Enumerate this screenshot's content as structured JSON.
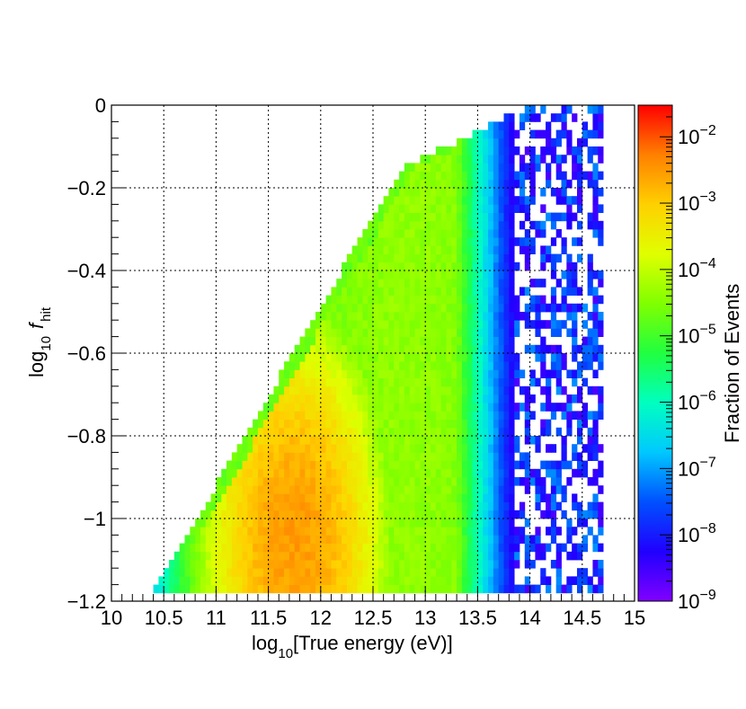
{
  "chart_data": {
    "type": "heatmap",
    "title": "",
    "xlabel": {
      "prefix": "log",
      "sub": "10",
      "text": "[True energy (eV)]"
    },
    "ylabel": {
      "prefix": "log",
      "sub": "10",
      "var": "f",
      "var_sub": "hit"
    },
    "zlabel": "Fraction of Events",
    "xlim": [
      10,
      15
    ],
    "ylim": [
      -1.2,
      0
    ],
    "zlim": [
      1e-09,
      0.03
    ],
    "z_scale": "log",
    "grid": true,
    "colorbar": "right",
    "x_ticks": [
      "10",
      "10.5",
      "11",
      "11.5",
      "12",
      "12.5",
      "13",
      "13.5",
      "14",
      "14.5",
      "15"
    ],
    "y_ticks": [
      "0",
      "−0.2",
      "−0.4",
      "−0.6",
      "−0.8",
      "−1",
      "−1.2"
    ],
    "y_tick_values": [
      0,
      -0.2,
      -0.4,
      -0.6,
      -0.8,
      -1,
      -1.2
    ],
    "x_tick_values": [
      10,
      10.5,
      11,
      11.5,
      12,
      12.5,
      13,
      13.5,
      14,
      14.5,
      15
    ],
    "z_ticks": [
      {
        "base": "10",
        "exp": "−2",
        "value": 0.01
      },
      {
        "base": "10",
        "exp": "−3",
        "value": 0.001
      },
      {
        "base": "10",
        "exp": "−4",
        "value": 0.0001
      },
      {
        "base": "10",
        "exp": "−5",
        "value": 1e-05
      },
      {
        "base": "10",
        "exp": "−6",
        "value": 1e-06
      },
      {
        "base": "10",
        "exp": "−7",
        "value": 1e-07
      },
      {
        "base": "10",
        "exp": "−8",
        "value": 1e-08
      },
      {
        "base": "10",
        "exp": "−9",
        "value": 1e-09
      }
    ],
    "bins": {
      "x_bin_width": 0.05,
      "y_bin_width": 0.02
    },
    "distribution": {
      "lower_edge_y0": -1.18,
      "lower_edge_x0": 10.4,
      "lower_edge_slope": 4.4,
      "upper_edge_x": 14.7,
      "cyan_front_x": 13.6,
      "peak": {
        "x": 11.75,
        "y": -1.05,
        "value": 0.003
      },
      "sparse_tail_start_x": 13.85,
      "sparse_tail_end_x": 14.7
    },
    "colormap": [
      "#8000ff",
      "#2000ff",
      "#0050ff",
      "#00c8ff",
      "#00ffc0",
      "#20ff40",
      "#80ff00",
      "#e0ff00",
      "#ffd000",
      "#ff8000",
      "#ff0000"
    ]
  }
}
